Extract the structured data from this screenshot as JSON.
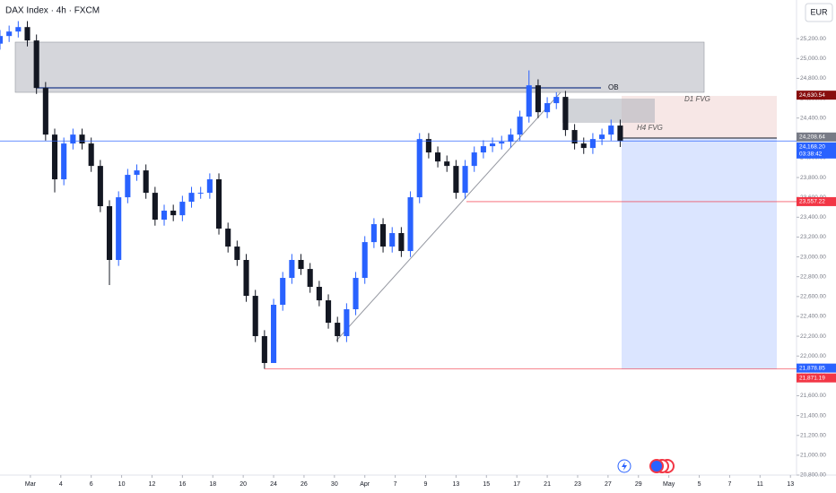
{
  "chart_data": {
    "type": "candlestick",
    "title": "DAX Index · 4h · FXCM",
    "currency": "EUR",
    "up_color": "#2962ff",
    "down_color": "#131722",
    "xlim": [
      -10,
      252
    ],
    "ylim": [
      20800,
      25590
    ],
    "xticks": [
      {
        "value": 0,
        "label": "Mar"
      },
      {
        "value": 10,
        "label": "4"
      },
      {
        "value": 20,
        "label": "6"
      },
      {
        "value": 30,
        "label": "10"
      },
      {
        "value": 40,
        "label": "12"
      },
      {
        "value": 50,
        "label": "16"
      },
      {
        "value": 60,
        "label": "18"
      },
      {
        "value": 70,
        "label": "20"
      },
      {
        "value": 80,
        "label": "24"
      },
      {
        "value": 90,
        "label": "26"
      },
      {
        "value": 100,
        "label": "30"
      },
      {
        "value": 110,
        "label": "Apr"
      },
      {
        "value": 120,
        "label": "7"
      },
      {
        "value": 130,
        "label": "9"
      },
      {
        "value": 140,
        "label": "13"
      },
      {
        "value": 150,
        "label": "15"
      },
      {
        "value": 160,
        "label": "17"
      },
      {
        "value": 170,
        "label": "21"
      },
      {
        "value": 180,
        "label": "23"
      },
      {
        "value": 190,
        "label": "27"
      },
      {
        "value": 200,
        "label": "29"
      },
      {
        "value": 210,
        "label": "May"
      },
      {
        "value": 220,
        "label": "5"
      },
      {
        "value": 230,
        "label": "7"
      },
      {
        "value": 240,
        "label": "11"
      },
      {
        "value": 250,
        "label": "13"
      }
    ],
    "yticks": [
      {
        "value": 20800,
        "label": "20,800.00"
      },
      {
        "value": 21000,
        "label": "21,000.00"
      },
      {
        "value": 21200,
        "label": "21,200.00"
      },
      {
        "value": 21400,
        "label": "21,400.00"
      },
      {
        "value": 21600,
        "label": "21,600.00"
      },
      {
        "value": 21800,
        "label": "21,800.00"
      },
      {
        "value": 22000,
        "label": "22,000.00"
      },
      {
        "value": 22200,
        "label": "22,200.00"
      },
      {
        "value": 22400,
        "label": "22,400.00"
      },
      {
        "value": 22600,
        "label": "22,600.00"
      },
      {
        "value": 22800,
        "label": "22,800.00"
      },
      {
        "value": 23000,
        "label": "23,000.00"
      },
      {
        "value": 23200,
        "label": "23,200.00"
      },
      {
        "value": 23400,
        "label": "23,400.00"
      },
      {
        "value": 23600,
        "label": "23,600.00"
      },
      {
        "value": 23800,
        "label": "23,800.00"
      },
      {
        "value": 24000,
        "label": "24,000.00"
      },
      {
        "value": 24200,
        "label": "24,200.00"
      },
      {
        "value": 24400,
        "label": "24,400.00"
      },
      {
        "value": 24600,
        "label": "24,600.00"
      },
      {
        "value": 24800,
        "label": "24,800.00"
      },
      {
        "value": 25000,
        "label": "25,000.00"
      },
      {
        "value": 25200,
        "label": "25,200.00"
      }
    ],
    "x": [
      -10,
      -7,
      -4,
      -1,
      2,
      5,
      8,
      11,
      14,
      17,
      20,
      23,
      26,
      29,
      32,
      35,
      38,
      41,
      44,
      47,
      50,
      53,
      56,
      59,
      62,
      65,
      68,
      71,
      74,
      77,
      80,
      83,
      86,
      89,
      92,
      95,
      98,
      101,
      104,
      107,
      110,
      113,
      116,
      119,
      122,
      125,
      128,
      131,
      134,
      137,
      140,
      143,
      146,
      149,
      152,
      155,
      158,
      161,
      164,
      167,
      170,
      173,
      176,
      179,
      182,
      185,
      188,
      191,
      194
    ],
    "open": [
      25150,
      25227,
      25272,
      25317,
      25182,
      24703,
      24233,
      23782,
      24143,
      24233,
      24143,
      23917,
      23511,
      22969,
      23601,
      23827,
      23872,
      23646,
      23375,
      23466,
      23420,
      23556,
      23646,
      23646,
      23782,
      23285,
      23104,
      22969,
      22607,
      22201,
      21930,
      22517,
      22788,
      22969,
      22878,
      22698,
      22562,
      22336,
      22201,
      22472,
      22788,
      23149,
      23330,
      23104,
      23240,
      23059,
      23601,
      24188,
      24053,
      23962,
      23917,
      23646,
      23917,
      24053,
      24116,
      24143,
      24161,
      24233,
      24414,
      24730,
      24459,
      24550,
      24613,
      24279,
      24143,
      24098,
      24188,
      24233,
      24324
    ],
    "high": [
      25287,
      25332,
      25377,
      25377,
      25242,
      24763,
      24293,
      24203,
      24293,
      24293,
      24203,
      23977,
      23571,
      23661,
      23887,
      23932,
      23932,
      23706,
      23526,
      23526,
      23616,
      23706,
      23706,
      23842,
      23842,
      23345,
      23164,
      23029,
      22667,
      22261,
      22577,
      22848,
      23029,
      23029,
      22938,
      22758,
      22622,
      22396,
      22532,
      22848,
      23209,
      23390,
      23390,
      23300,
      23300,
      23661,
      24248,
      24248,
      24113,
      24022,
      23977,
      23977,
      24113,
      24176,
      24203,
      24221,
      24293,
      24474,
      24880,
      24790,
      24610,
      24660,
      24673,
      24339,
      24203,
      24248,
      24293,
      24384,
      24384
    ],
    "low": [
      25090,
      25167,
      25212,
      25122,
      24643,
      24173,
      23650,
      23722,
      24083,
      24083,
      23857,
      23451,
      22716,
      22909,
      23541,
      23767,
      23586,
      23315,
      23315,
      23360,
      23360,
      23496,
      23586,
      23586,
      23225,
      23044,
      22909,
      22547,
      22141,
      21871,
      21950,
      22457,
      22728,
      22818,
      22638,
      22502,
      22276,
      22141,
      22141,
      22412,
      22728,
      23089,
      23044,
      23044,
      22999,
      22999,
      23541,
      23993,
      23902,
      23857,
      23586,
      23586,
      23857,
      23993,
      24056,
      24083,
      24101,
      24173,
      24354,
      24399,
      24399,
      24490,
      24219,
      24083,
      24038,
      24038,
      24128,
      24173,
      24108
    ],
    "close": [
      25227,
      25272,
      25317,
      25182,
      24703,
      24233,
      23782,
      24143,
      24233,
      24143,
      23917,
      23511,
      22969,
      23601,
      23827,
      23872,
      23646,
      23375,
      23466,
      23420,
      23556,
      23646,
      23646,
      23782,
      23285,
      23104,
      22969,
      22607,
      22201,
      21930,
      22517,
      22788,
      22969,
      22878,
      22698,
      22562,
      22336,
      22201,
      22472,
      22788,
      23149,
      23330,
      23104,
      23240,
      23059,
      23601,
      24188,
      24053,
      23962,
      23917,
      23646,
      23917,
      24053,
      24116,
      24143,
      24161,
      24233,
      24414,
      24730,
      24459,
      24550,
      24613,
      24279,
      24143,
      24098,
      24188,
      24233,
      24324,
      24168
    ],
    "price_labels": [
      {
        "value": 24630.54,
        "label": "24,630.54",
        "color": "#880e0e"
      },
      {
        "value": 24208.64,
        "label": "24,208.64",
        "color": "#787b86"
      },
      {
        "value": 24168.2,
        "label": "24,168.20",
        "sublabel": "03:38:42",
        "color": "#2962ff"
      },
      {
        "value": 23557.22,
        "label": "23,557.22",
        "color": "#f23645"
      },
      {
        "value": 21878.85,
        "label": "21,878.85",
        "color": "#2962ff"
      },
      {
        "value": 21871.19,
        "label": "21,871.19",
        "color": "#f23645"
      }
    ],
    "annotations": [
      "OB",
      "D1 FVG",
      "H4 FVG"
    ]
  }
}
